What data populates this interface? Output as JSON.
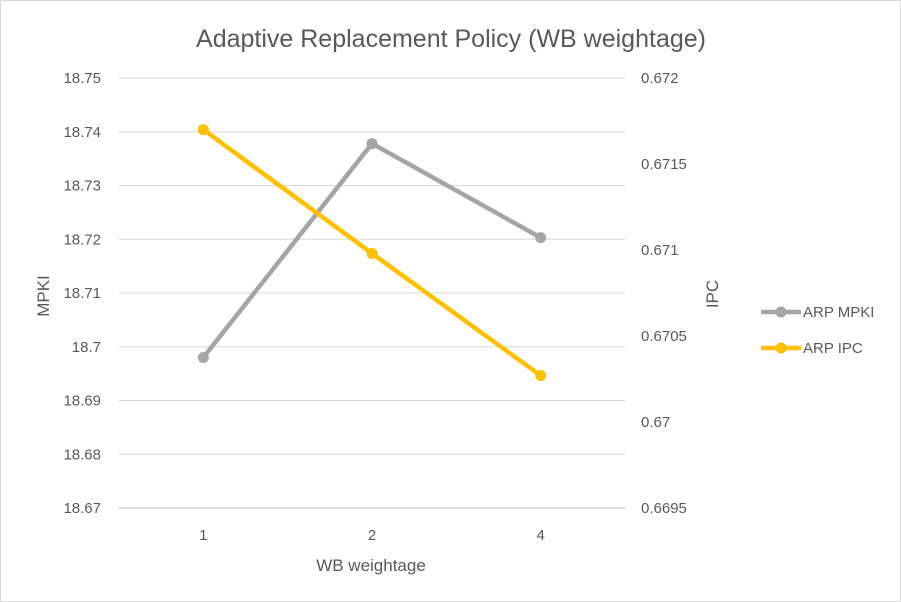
{
  "chart_data": {
    "type": "line",
    "title": "Adaptive Replacement Policy (WB weightage)",
    "xlabel": "WB weightage",
    "ylabel": "MPKI",
    "y2label": "IPC",
    "categories": [
      "1",
      "2",
      "4"
    ],
    "ylim": [
      18.67,
      18.75
    ],
    "y_ticks": [
      "18.67",
      "18.68",
      "18.69",
      "18.7",
      "18.71",
      "18.72",
      "18.73",
      "18.74",
      "18.75"
    ],
    "y2lim": [
      0.6695,
      0.672
    ],
    "y2_ticks": [
      "0.6695",
      "0.67",
      "0.6705",
      "0.671",
      "0.6715",
      "0.672"
    ],
    "grid": true,
    "legend_position": "right",
    "series": [
      {
        "name": "ARP MPKI",
        "axis": "left",
        "color": "#a5a5a5",
        "values": [
          18.698,
          18.7378,
          18.7203
        ]
      },
      {
        "name": "ARP IPC",
        "axis": "right",
        "color": "#ffc000",
        "values": [
          0.6717,
          0.67098,
          0.67027
        ]
      }
    ]
  }
}
